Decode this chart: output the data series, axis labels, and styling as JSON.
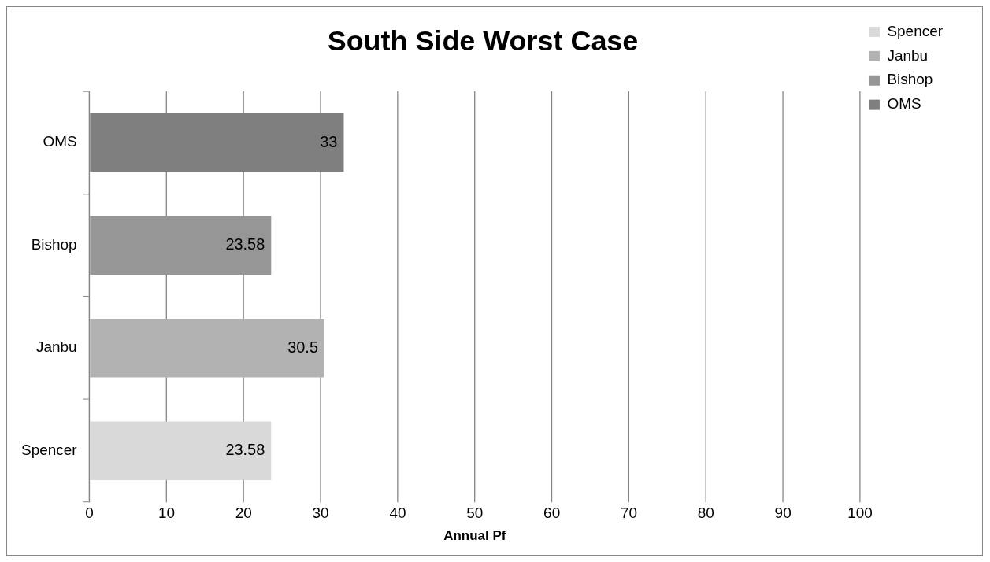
{
  "chart_data": {
    "type": "bar",
    "orientation": "horizontal",
    "stacked": true,
    "title": "South Side Worst Case",
    "xlabel": "Annual Pf",
    "categories": [
      "OMS",
      "Bishop",
      "Janbu",
      "Spencer"
    ],
    "series": [
      {
        "name": "Spencer",
        "color": "#d9d9d9",
        "values": [
          null,
          null,
          null,
          23.58
        ]
      },
      {
        "name": "Janbu",
        "color": "#b2b2b2",
        "values": [
          null,
          null,
          30.5,
          null
        ]
      },
      {
        "name": "Bishop",
        "color": "#969696",
        "values": [
          null,
          23.58,
          null,
          null
        ]
      },
      {
        "name": "OMS",
        "color": "#7f7f7f",
        "values": [
          33,
          null,
          null,
          null
        ]
      }
    ],
    "xlim": [
      0,
      100
    ],
    "xticks": [
      0,
      10,
      20,
      30,
      40,
      50,
      60,
      70,
      80,
      90,
      100
    ],
    "grid": "x",
    "legend": "top right",
    "data_labels": true
  }
}
